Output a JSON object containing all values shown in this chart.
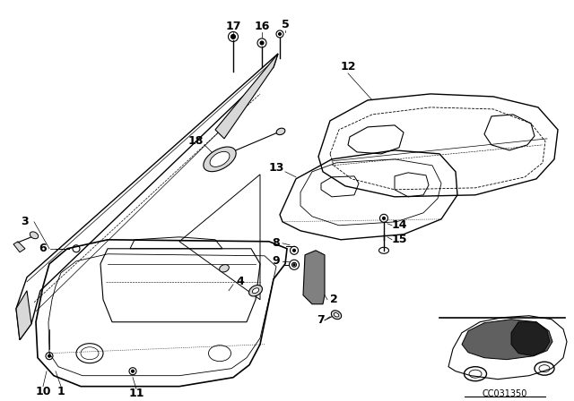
{
  "bg_color": "#ffffff",
  "line_color": "#000000",
  "diagram_code": "CC031350",
  "font_size": 9,
  "gray_fill": "#d8d8d8",
  "dark_fill": "#505050"
}
